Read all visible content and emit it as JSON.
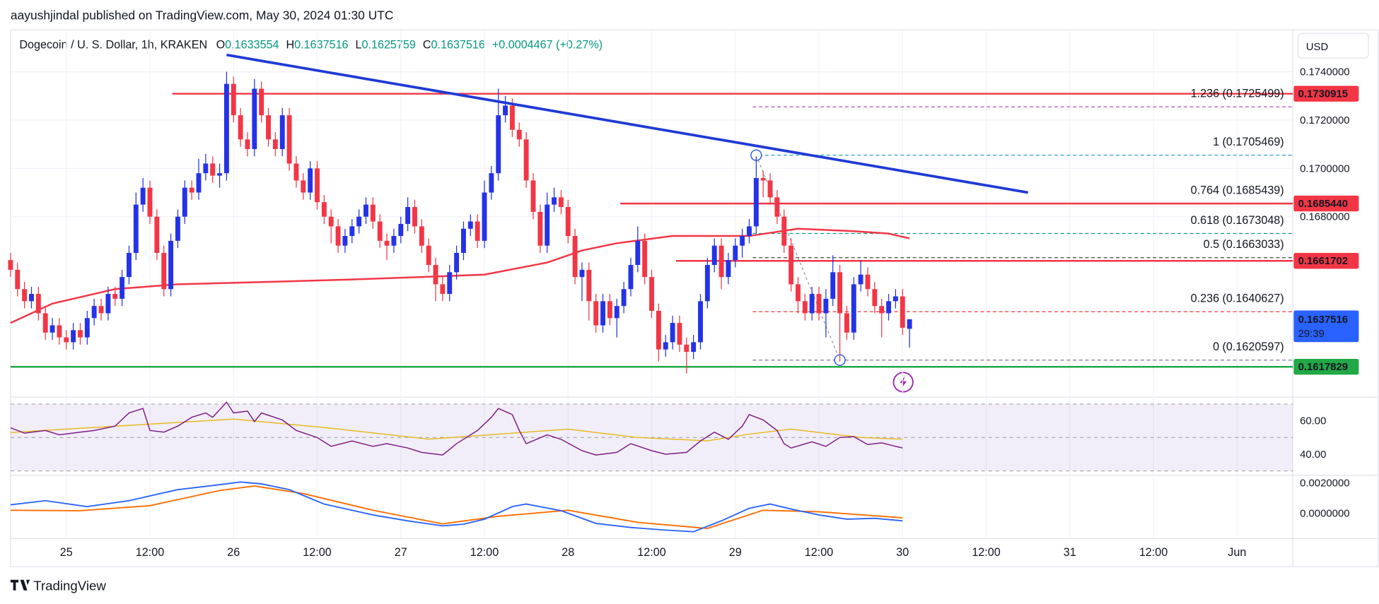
{
  "published": "aayushjindal published on TradingView.com, May 30, 2024 01:30 UTC",
  "brand": "TradingView",
  "chart_data": {
    "type": "candlestick",
    "title": "Dogecoin / U. S. Dollar, 1h, KRAKEN",
    "ohlc_labels": [
      "O",
      "H",
      "L",
      "C"
    ],
    "change": "+0.0004467 (+0.27%)",
    "currency": "USD",
    "countdown": "29:39",
    "up_color": "#2433e6",
    "down_color": "#f23645",
    "open": [
      0.1662,
      0.1658,
      0.165,
      0.1645,
      0.1648,
      0.164,
      0.1632,
      0.1635,
      0.163,
      0.1628,
      0.1633,
      0.163,
      0.1638,
      0.1643,
      0.164,
      0.1648,
      0.1646,
      0.1655,
      0.1665,
      0.1685,
      0.1692,
      0.168,
      0.1665,
      0.165,
      0.167,
      0.168,
      0.1692,
      0.169,
      0.1698,
      0.1702,
      0.1697,
      0.1698,
      0.1735,
      0.1722,
      0.1712,
      0.1708,
      0.1733,
      0.1722,
      0.1712,
      0.1708,
      0.1722,
      0.1702,
      0.1695,
      0.169,
      0.17,
      0.1686,
      0.168,
      0.1676,
      0.1668,
      0.1672,
      0.1676,
      0.168,
      0.1685,
      0.1678,
      0.167,
      0.1668,
      0.1672,
      0.1677,
      0.1684,
      0.1676,
      0.1668,
      0.166,
      0.1652,
      0.1648,
      0.1657,
      0.1665,
      0.1675,
      0.1678,
      0.167,
      0.169,
      0.1698,
      0.1722,
      0.1726,
      0.1716,
      0.1712,
      0.1695,
      0.1682,
      0.1668,
      0.1685,
      0.1688,
      0.1684,
      0.1672,
      0.1655,
      0.1658,
      0.1645,
      0.1635,
      0.1645,
      0.1638,
      0.1643,
      0.165,
      0.166,
      0.167,
      0.1655,
      0.1641,
      0.1625,
      0.1628,
      0.1636,
      0.1627,
      0.1624,
      0.1628,
      0.1645,
      0.166,
      0.1668,
      0.1655,
      0.1662,
      0.1668,
      0.1672,
      0.1676,
      0.1696,
      0.1695,
      0.1688,
      0.168,
      0.1668,
      0.1652,
      0.1645,
      0.164,
      0.1648,
      0.164,
      0.1646,
      0.1657,
      0.164,
      0.1632,
      0.1652,
      0.1656,
      0.165,
      0.1643,
      0.164,
      0.1645,
      0.1647,
      0.1633554
    ],
    "high": [
      0.1665,
      0.1661,
      0.1653,
      0.1651,
      0.1651,
      0.1643,
      0.1638,
      0.1638,
      0.1633,
      0.1636,
      0.1636,
      0.1641,
      0.1646,
      0.1646,
      0.1651,
      0.1651,
      0.1658,
      0.1668,
      0.169,
      0.1696,
      0.1695,
      0.1683,
      0.1668,
      0.1673,
      0.1683,
      0.1695,
      0.1695,
      0.1704,
      0.1706,
      0.1705,
      0.1702,
      0.174,
      0.1738,
      0.1725,
      0.1715,
      0.1737,
      0.1736,
      0.1725,
      0.1715,
      0.1725,
      0.1725,
      0.1705,
      0.1698,
      0.1703,
      0.1703,
      0.1689,
      0.1683,
      0.1679,
      0.1675,
      0.1679,
      0.1683,
      0.1688,
      0.1688,
      0.1681,
      0.1673,
      0.1675,
      0.168,
      0.1688,
      0.1687,
      0.1679,
      0.1671,
      0.1663,
      0.1655,
      0.166,
      0.1668,
      0.1678,
      0.1681,
      0.1681,
      0.1695,
      0.1701,
      0.1733,
      0.173,
      0.1729,
      0.1719,
      0.1715,
      0.1698,
      0.1685,
      0.169,
      0.1692,
      0.1691,
      0.1687,
      0.1675,
      0.1661,
      0.1661,
      0.1648,
      0.1648,
      0.1648,
      0.1646,
      0.1653,
      0.1663,
      0.1676,
      0.1673,
      0.1658,
      0.1644,
      0.1631,
      0.1639,
      0.1639,
      0.163,
      0.1631,
      0.1648,
      0.1663,
      0.1671,
      0.1671,
      0.1665,
      0.1671,
      0.1675,
      0.1679,
      0.1705,
      0.1699,
      0.1698,
      0.1691,
      0.1683,
      0.1671,
      0.1655,
      0.1648,
      0.1651,
      0.1651,
      0.165,
      0.1664,
      0.166,
      0.1643,
      0.1655,
      0.1662,
      0.1659,
      0.1653,
      0.1646,
      0.1648,
      0.165,
      0.165,
      0.1637516
    ],
    "low": [
      0.1655,
      0.1647,
      0.1642,
      0.1642,
      0.1637,
      0.1629,
      0.1629,
      0.1627,
      0.1625,
      0.1625,
      0.1627,
      0.1627,
      0.1635,
      0.1637,
      0.1637,
      0.1643,
      0.1643,
      0.1652,
      0.1662,
      0.1682,
      0.1677,
      0.1662,
      0.1647,
      0.1647,
      0.1667,
      0.1677,
      0.1687,
      0.1687,
      0.1695,
      0.1694,
      0.1692,
      0.1695,
      0.1719,
      0.1709,
      0.1705,
      0.1705,
      0.1719,
      0.1709,
      0.1705,
      0.1705,
      0.1699,
      0.1692,
      0.1687,
      0.1687,
      0.1683,
      0.1677,
      0.1669,
      0.1665,
      0.1665,
      0.1669,
      0.1673,
      0.1677,
      0.1675,
      0.1667,
      0.1662,
      0.1665,
      0.1669,
      0.1674,
      0.1673,
      0.1665,
      0.1657,
      0.1645,
      0.1645,
      0.1645,
      0.1654,
      0.1662,
      0.1672,
      0.1667,
      0.1667,
      0.1687,
      0.1695,
      0.1719,
      0.1713,
      0.1709,
      0.1692,
      0.1679,
      0.1665,
      0.1665,
      0.1682,
      0.1681,
      0.1669,
      0.1652,
      0.1645,
      0.1637,
      0.1632,
      0.1632,
      0.1635,
      0.163,
      0.164,
      0.1647,
      0.1657,
      0.1652,
      0.1638,
      0.162,
      0.1622,
      0.1625,
      0.1624,
      0.1615,
      0.1621,
      0.1625,
      0.1642,
      0.1657,
      0.165,
      0.1652,
      0.1659,
      0.1663,
      0.1669,
      0.1673,
      0.1688,
      0.1685,
      0.1677,
      0.1665,
      0.1649,
      0.164,
      0.1637,
      0.1637,
      0.1637,
      0.163,
      0.1643,
      0.162,
      0.1629,
      0.1629,
      0.1649,
      0.1647,
      0.164,
      0.163,
      0.1637,
      0.1642,
      0.1631,
      0.1625759
    ],
    "close": [
      0.1658,
      0.165,
      0.1645,
      0.1648,
      0.164,
      0.1632,
      0.1635,
      0.163,
      0.1628,
      0.1633,
      0.163,
      0.1638,
      0.1643,
      0.164,
      0.1648,
      0.1646,
      0.1655,
      0.1665,
      0.1685,
      0.1692,
      0.168,
      0.1665,
      0.165,
      0.167,
      0.168,
      0.1692,
      0.169,
      0.1698,
      0.1702,
      0.1697,
      0.1698,
      0.1735,
      0.1722,
      0.1712,
      0.1708,
      0.1733,
      0.1722,
      0.1712,
      0.1708,
      0.1722,
      0.1702,
      0.1695,
      0.169,
      0.17,
      0.1686,
      0.168,
      0.1676,
      0.1668,
      0.1672,
      0.1676,
      0.168,
      0.1685,
      0.1678,
      0.167,
      0.1668,
      0.1672,
      0.1677,
      0.1684,
      0.1676,
      0.1668,
      0.166,
      0.1652,
      0.1648,
      0.1657,
      0.1665,
      0.1675,
      0.1678,
      0.167,
      0.169,
      0.1698,
      0.1722,
      0.1726,
      0.1716,
      0.1712,
      0.1695,
      0.1682,
      0.1668,
      0.1685,
      0.1688,
      0.1684,
      0.1672,
      0.1655,
      0.1658,
      0.1645,
      0.1635,
      0.1645,
      0.1638,
      0.1643,
      0.165,
      0.166,
      0.167,
      0.1655,
      0.1641,
      0.1625,
      0.1628,
      0.1636,
      0.1627,
      0.1624,
      0.1628,
      0.1645,
      0.166,
      0.1668,
      0.1655,
      0.1662,
      0.1668,
      0.1672,
      0.1676,
      0.1696,
      0.1695,
      0.1688,
      0.168,
      0.1668,
      0.1652,
      0.1645,
      0.164,
      0.1648,
      0.164,
      0.1646,
      0.1657,
      0.164,
      0.1632,
      0.1652,
      0.1656,
      0.165,
      0.1643,
      0.164,
      0.1645,
      0.1647,
      0.1634,
      0.1637516
    ],
    "xlim": [
      0,
      184
    ],
    "xticks": [
      {
        "value": 8,
        "label": "25"
      },
      {
        "value": 20,
        "label": "12:00"
      },
      {
        "value": 32,
        "label": "26"
      },
      {
        "value": 44,
        "label": "12:00"
      },
      {
        "value": 56,
        "label": "27"
      },
      {
        "value": 68,
        "label": "12:00"
      },
      {
        "value": 80,
        "label": "28"
      },
      {
        "value": 92,
        "label": "12:00"
      },
      {
        "value": 104,
        "label": "29"
      },
      {
        "value": 116,
        "label": "12:00"
      },
      {
        "value": 128,
        "label": "30"
      },
      {
        "value": 140,
        "label": "12:00"
      },
      {
        "value": 152,
        "label": "31"
      },
      {
        "value": 164,
        "label": "12:00"
      },
      {
        "value": 176,
        "label": "Jun"
      }
    ],
    "ylim": [
      0.1606,
      0.1757
    ],
    "yticks": [
      {
        "value": 0.174,
        "label": "0.1740000"
      },
      {
        "value": 0.172,
        "label": "0.1720000"
      },
      {
        "value": 0.17,
        "label": "0.1700000"
      },
      {
        "value": 0.168,
        "label": "0.1680000"
      }
    ],
    "moving_average": {
      "color": "#f23645",
      "x": [
        0,
        6,
        15,
        24,
        37,
        49,
        59,
        68,
        77,
        82,
        87,
        95,
        106,
        113,
        121,
        126,
        129
      ],
      "values": [
        0.1636,
        0.1644,
        0.165,
        0.1652,
        0.1653,
        0.1654,
        0.1655,
        0.1656,
        0.1661,
        0.1666,
        0.1669,
        0.1672,
        0.1672,
        0.1675,
        0.1674,
        0.1673,
        0.1671
      ]
    },
    "trendline": {
      "color": "#1f3ad6",
      "x": [
        31,
        146
      ],
      "values": [
        0.1747,
        0.169
      ]
    },
    "levels": [
      {
        "value": 0.1730915,
        "color": "#f23645"
      },
      {
        "value": 0.168544,
        "label": "0.1685440",
        "color": "#f23645"
      },
      {
        "value": 0.1661702,
        "color": "#f23645"
      },
      {
        "value": 0.1617829,
        "color": "#22a846"
      }
    ],
    "fibonacci": [
      {
        "value": 0.1725499,
        "label": "1.236 (0.1725499)",
        "color": "#b84fb8"
      },
      {
        "value": 0.1705469,
        "label": "1 (0.1705469)",
        "color": "#2f9fc9"
      },
      {
        "value": 0.1685439,
        "label": "0.764 (0.1685439)",
        "color": "#f23645"
      },
      {
        "value": 0.1673048,
        "label": "0.618 (0.1673048)",
        "color": "#089981"
      },
      {
        "value": 0.1663033,
        "label": "0.5 (0.1663033)",
        "color": "#434651"
      },
      {
        "value": 0.1640627,
        "label": "0.236 (0.1640627)",
        "color": "#f23645"
      },
      {
        "value": 0.1620597,
        "label": "0 (0.1620597)",
        "color": "#787b86"
      }
    ],
    "rsi": {
      "color": "#7e1f86",
      "ma_color": "#e8b923",
      "ylim": [
        27.9,
        72.6
      ],
      "band": [
        30,
        70
      ],
      "levels": [
        70,
        50,
        30
      ],
      "yticks": [
        {
          "value": 60,
          "label": "60.00"
        },
        {
          "value": 40,
          "label": "40.00"
        }
      ],
      "x": [
        0,
        2,
        5,
        7,
        10,
        12,
        15,
        17,
        19,
        20,
        22,
        24,
        26,
        28,
        29,
        31,
        32,
        34,
        35,
        36,
        39,
        41,
        44,
        46,
        49,
        52,
        54,
        57,
        59,
        62,
        64,
        67,
        69,
        70,
        72,
        73,
        74,
        77,
        79,
        82,
        84,
        87,
        89,
        92,
        94,
        97,
        99,
        101,
        103,
        105,
        106,
        108,
        110,
        111,
        112,
        115,
        117,
        119,
        121,
        123,
        125,
        127,
        128
      ],
      "values": [
        55.8,
        52.6,
        54.2,
        51.6,
        53.2,
        54.2,
        56.8,
        64.7,
        67.4,
        54.2,
        53.2,
        56.8,
        62.1,
        64.7,
        62.1,
        71.1,
        64.7,
        65.8,
        59.5,
        64.7,
        60.5,
        54.2,
        50.0,
        44.7,
        47.9,
        44.7,
        46.3,
        43.7,
        41.1,
        39.5,
        46.3,
        54.2,
        62.1,
        67.4,
        63.7,
        54.2,
        46.3,
        51.6,
        48.9,
        42.1,
        39.5,
        41.1,
        46.3,
        42.1,
        40.0,
        41.1,
        47.9,
        53.2,
        48.9,
        56.8,
        63.7,
        60.5,
        54.2,
        46.3,
        43.7,
        47.4,
        44.7,
        50.0,
        50.5,
        45.8,
        46.8,
        44.7,
        43.7
      ],
      "ma_x": [
        0,
        20,
        32,
        45,
        60,
        70,
        80,
        90,
        100,
        106,
        112,
        122,
        128
      ],
      "ma_values": [
        53,
        58,
        61,
        56,
        49,
        52,
        55,
        50,
        48,
        52,
        55,
        50,
        49
      ]
    },
    "macd": {
      "color": "#2962ff",
      "signal_color": "#ff6d00",
      "ylim": [
        -0.00161,
        0.00239
      ],
      "yticks": [
        {
          "value": 0.002,
          "label": "0.0020000"
        },
        {
          "value": 0,
          "label": "0.0000000"
        }
      ],
      "x": [
        0,
        5,
        11,
        17,
        24,
        29,
        33,
        36,
        40,
        45,
        52,
        57,
        62,
        65,
        68,
        72,
        74,
        79,
        84,
        89,
        94,
        98,
        102,
        106,
        109,
        112,
        116,
        120,
        124,
        128
      ],
      "values": [
        0.00056,
        0.00083,
        0.00044,
        0.00083,
        0.00156,
        0.00183,
        0.00206,
        0.00194,
        0.00156,
        0.00061,
        -0.00011,
        -0.0005,
        -0.00083,
        -0.00072,
        -0.00039,
        0.00044,
        0.00061,
        0.00017,
        -0.00067,
        -0.00094,
        -0.00111,
        -0.00122,
        -0.0005,
        0.00033,
        0.00061,
        0.00028,
        -0.00011,
        -0.00039,
        -0.00033,
        -0.0005
      ],
      "signal_x": [
        0,
        10,
        20,
        30,
        35,
        42,
        52,
        62,
        70,
        80,
        90,
        100,
        108,
        116,
        128
      ],
      "signal_values": [
        0.0002,
        0.00017,
        0.0005,
        0.0015,
        0.0018,
        0.0013,
        0.0002,
        -0.0007,
        -0.0002,
        0.0002,
        -0.0006,
        -0.001,
        0.0002,
        0.0001,
        -0.0003
      ]
    }
  }
}
